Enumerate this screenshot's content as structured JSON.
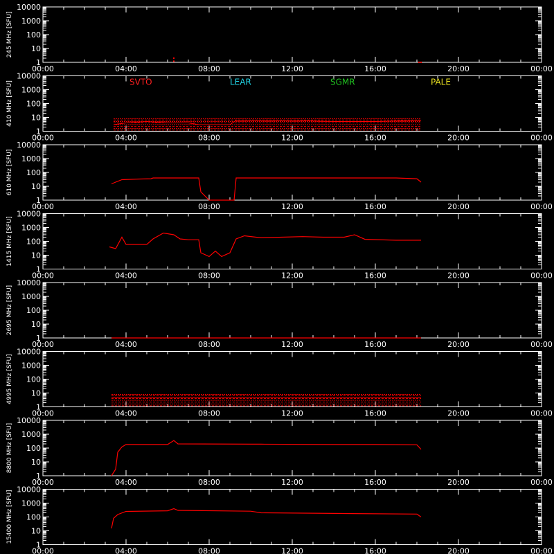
{
  "chart_data": {
    "type": "line",
    "colors": {
      "background": "#000000",
      "axes": "#ffffff",
      "data": "#ff0000"
    },
    "x_ticks": [
      "00:00",
      "04:00",
      "08:00",
      "12:00",
      "16:00",
      "20:00",
      "00:00"
    ],
    "y_ticks": [
      "1",
      "10",
      "100",
      "1000",
      "10000"
    ],
    "xlim_hours": [
      0,
      24
    ],
    "ylim_sfu": [
      1,
      10000
    ],
    "y_scale": "log",
    "stations": [
      {
        "name": "SVTO",
        "color": "#ff2020"
      },
      {
        "name": "LEAR",
        "color": "#20d0e0"
      },
      {
        "name": "SGMR",
        "color": "#20c020"
      },
      {
        "name": "PALE",
        "color": "#e8e020"
      }
    ],
    "panels": [
      {
        "ylabel": "245 MHz [SFU]",
        "style": "sparse",
        "series": [
          [
            6.3,
            2.0
          ],
          [
            6.3,
            1.2
          ],
          [
            18.1,
            1.0
          ],
          [
            18.2,
            1.0
          ]
        ]
      },
      {
        "ylabel": "410 MHz [SFU]",
        "style": "bands",
        "show_stations": true,
        "range_hours": [
          3.4,
          18.2
        ],
        "series": [
          [
            3.4,
            3
          ],
          [
            4,
            4
          ],
          [
            5,
            5
          ],
          [
            6,
            4
          ],
          [
            7,
            4
          ],
          [
            7.5,
            3
          ],
          [
            8,
            3
          ],
          [
            9,
            3
          ],
          [
            9.3,
            6
          ],
          [
            10,
            6
          ],
          [
            12,
            6
          ],
          [
            14,
            5
          ],
          [
            16,
            5
          ],
          [
            18,
            6
          ],
          [
            18.2,
            6
          ]
        ]
      },
      {
        "ylabel": "610 MHz [SFU]",
        "style": "line",
        "series": [
          [
            3.3,
            15
          ],
          [
            3.5,
            20
          ],
          [
            3.8,
            30
          ],
          [
            4.5,
            33
          ],
          [
            5.2,
            35
          ],
          [
            5.3,
            40
          ],
          [
            6,
            40
          ],
          [
            7,
            40
          ],
          [
            7.5,
            40
          ],
          [
            7.6,
            4
          ],
          [
            8,
            1
          ],
          [
            9,
            1
          ],
          [
            9.2,
            1
          ],
          [
            9.3,
            40
          ],
          [
            10,
            40
          ],
          [
            12,
            40
          ],
          [
            14,
            40
          ],
          [
            16,
            40
          ],
          [
            17,
            40
          ],
          [
            18,
            35
          ],
          [
            18.2,
            20
          ]
        ]
      },
      {
        "ylabel": "1415 MHz [SFU]",
        "style": "line",
        "series": [
          [
            3.2,
            40
          ],
          [
            3.5,
            30
          ],
          [
            3.8,
            200
          ],
          [
            4,
            60
          ],
          [
            5,
            60
          ],
          [
            5.3,
            150
          ],
          [
            5.8,
            400
          ],
          [
            6.3,
            300
          ],
          [
            6.6,
            150
          ],
          [
            7,
            130
          ],
          [
            7.5,
            130
          ],
          [
            7.6,
            15
          ],
          [
            8,
            8
          ],
          [
            8.3,
            20
          ],
          [
            8.6,
            8
          ],
          [
            9,
            15
          ],
          [
            9.3,
            150
          ],
          [
            9.7,
            250
          ],
          [
            10.5,
            180
          ],
          [
            11.5,
            200
          ],
          [
            12.5,
            220
          ],
          [
            13.5,
            200
          ],
          [
            14.5,
            200
          ],
          [
            15,
            300
          ],
          [
            15.5,
            140
          ],
          [
            17,
            120
          ],
          [
            18.2,
            120
          ]
        ]
      },
      {
        "ylabel": "2695 MHz [SFU]",
        "style": "flat",
        "series": [
          [
            3.3,
            1.0
          ],
          [
            18.2,
            1.0
          ]
        ]
      },
      {
        "ylabel": "4995 MHz [SFU]",
        "style": "bands",
        "range_hours": [
          3.3,
          18.2
        ],
        "series": [
          [
            3.3,
            5
          ],
          [
            6,
            5
          ],
          [
            9,
            5
          ],
          [
            12,
            5
          ],
          [
            15,
            5
          ],
          [
            18.2,
            5
          ]
        ]
      },
      {
        "ylabel": "8800 MHz [SFU]",
        "style": "line",
        "series": [
          [
            3.3,
            1
          ],
          [
            3.5,
            3
          ],
          [
            3.6,
            50
          ],
          [
            3.8,
            120
          ],
          [
            4,
            180
          ],
          [
            6,
            180
          ],
          [
            6.3,
            350
          ],
          [
            6.5,
            200
          ],
          [
            10,
            190
          ],
          [
            10.5,
            190
          ],
          [
            14,
            180
          ],
          [
            16,
            180
          ],
          [
            18,
            170
          ],
          [
            18.2,
            80
          ]
        ]
      },
      {
        "ylabel": "15400 MHz [SFU]",
        "style": "line",
        "series": [
          [
            3.3,
            15
          ],
          [
            3.4,
            80
          ],
          [
            3.6,
            150
          ],
          [
            4,
            250
          ],
          [
            6,
            280
          ],
          [
            6.3,
            400
          ],
          [
            6.5,
            300
          ],
          [
            10,
            260
          ],
          [
            10.5,
            200
          ],
          [
            14,
            180
          ],
          [
            16,
            170
          ],
          [
            18,
            160
          ],
          [
            18.2,
            100
          ]
        ]
      }
    ]
  }
}
